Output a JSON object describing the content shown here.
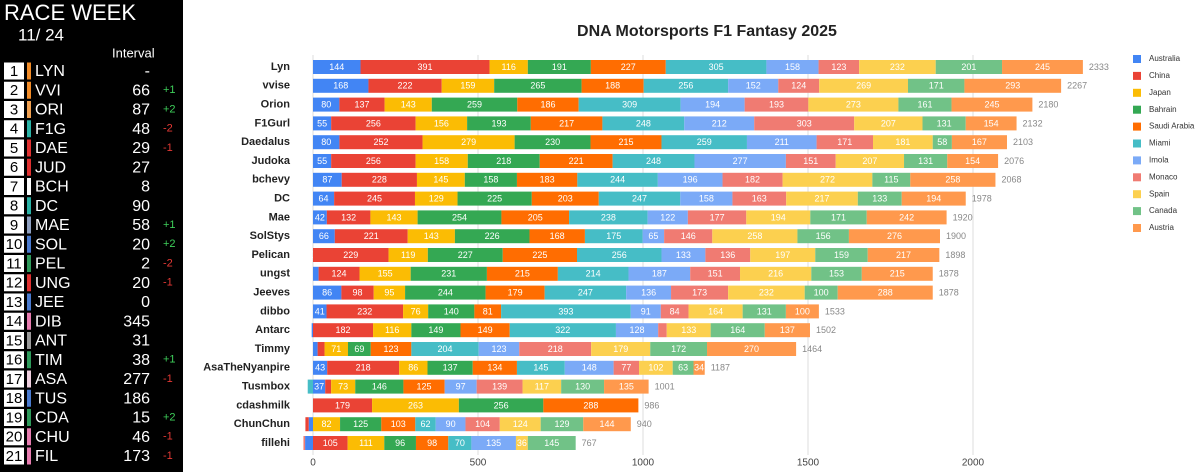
{
  "standings": {
    "title": "RACE WEEK",
    "week": "11/ 24",
    "interval_header": "Interval",
    "rows": [
      {
        "pos": 1,
        "code": "LYN",
        "interval": "-",
        "change": null,
        "color": "#f28c28"
      },
      {
        "pos": 2,
        "code": "VVI",
        "interval": 66,
        "change": "+1",
        "color": "#f28c28"
      },
      {
        "pos": 3,
        "code": "ORI",
        "interval": 87,
        "change": "+2",
        "color": "#f0a050"
      },
      {
        "pos": 4,
        "code": "F1G",
        "interval": 48,
        "change": "-2",
        "color": "#2ab3a6"
      },
      {
        "pos": 5,
        "code": "DAE",
        "interval": 29,
        "change": "-1",
        "color": "#e03030"
      },
      {
        "pos": 6,
        "code": "JUD",
        "interval": 27,
        "change": null,
        "color": "#e03030"
      },
      {
        "pos": 7,
        "code": "BCH",
        "interval": 8,
        "change": null,
        "color": "#ffffff"
      },
      {
        "pos": 8,
        "code": "DC",
        "interval": 90,
        "change": null,
        "color": "#2ab3a6"
      },
      {
        "pos": 9,
        "code": "MAE",
        "interval": 58,
        "change": "+1",
        "color": "#8fa0c0"
      },
      {
        "pos": 10,
        "code": "SOL",
        "interval": 20,
        "change": "+2",
        "color": "#4a7bd0"
      },
      {
        "pos": 11,
        "code": "PEL",
        "interval": 2,
        "change": "-2",
        "color": "#2e9a5a"
      },
      {
        "pos": 12,
        "code": "UNG",
        "interval": 20,
        "change": "-1",
        "color": "#e03030"
      },
      {
        "pos": 13,
        "code": "JEE",
        "interval": 0,
        "change": null,
        "color": "#4a7bd0"
      },
      {
        "pos": 14,
        "code": "DIB",
        "interval": 345,
        "change": null,
        "color": "#e87cb0"
      },
      {
        "pos": 15,
        "code": "ANT",
        "interval": 31,
        "change": null,
        "color": "#9a9a9a"
      },
      {
        "pos": 16,
        "code": "TIM",
        "interval": 38,
        "change": "+1",
        "color": "#2e9a5a"
      },
      {
        "pos": 17,
        "code": "ASA",
        "interval": 277,
        "change": "-1",
        "color": "#f0d0e0"
      },
      {
        "pos": 18,
        "code": "TUS",
        "interval": 186,
        "change": null,
        "color": "#4a7bd0"
      },
      {
        "pos": 19,
        "code": "CDA",
        "interval": 15,
        "change": "+2",
        "color": "#2e9a5a"
      },
      {
        "pos": 20,
        "code": "CHU",
        "interval": 46,
        "change": "-1",
        "color": "#e87cb0"
      },
      {
        "pos": 21,
        "code": "FIL",
        "interval": 173,
        "change": "-1",
        "color": "#e87cb0"
      }
    ]
  },
  "chart_data": {
    "type": "stacked_bar_horizontal",
    "title": "DNA Motorsports F1 Fantasy 2025",
    "categories": [
      "Lyn",
      "vvise",
      "Orion",
      "F1Gurl",
      "Daedalus",
      "Judoka",
      "bchevy",
      "DC",
      "Mae",
      "SolStys",
      "Pelican",
      "ungst",
      "Jeeves",
      "dibbo",
      "Antarc",
      "Timmy",
      "AsaTheNyanpire",
      "Tusmbox",
      "cdashmilk",
      "ChunChun",
      "fillehi"
    ],
    "series": [
      {
        "name": "Australia",
        "color": "#4285f4",
        "values": [
          144,
          168,
          80,
          55,
          80,
          55,
          87,
          64,
          42,
          66,
          0,
          17,
          86,
          41,
          -4,
          14,
          43,
          37,
          null,
          -13,
          -24
        ]
      },
      {
        "name": "China",
        "color": "#ea4335",
        "values": [
          391,
          222,
          137,
          256,
          252,
          256,
          228,
          245,
          132,
          221,
          229,
          124,
          98,
          232,
          182,
          21,
          218,
          18,
          179,
          -10,
          105
        ]
      },
      {
        "name": "Japan",
        "color": "#fbbc04",
        "values": [
          116,
          159,
          143,
          156,
          279,
          158,
          145,
          129,
          143,
          143,
          119,
          155,
          95,
          76,
          116,
          71,
          86,
          73,
          263,
          82,
          111
        ]
      },
      {
        "name": "Bahrain",
        "color": "#34a853",
        "values": [
          191,
          265,
          259,
          193,
          230,
          218,
          158,
          225,
          254,
          226,
          227,
          231,
          244,
          140,
          149,
          69,
          137,
          146,
          256,
          125,
          96
        ]
      },
      {
        "name": "Saudi Arabia",
        "color": "#ff6d01",
        "values": [
          227,
          188,
          186,
          217,
          215,
          221,
          183,
          203,
          205,
          168,
          225,
          215,
          179,
          81,
          149,
          123,
          134,
          125,
          288,
          103,
          98
        ]
      },
      {
        "name": "Miami",
        "color": "#46bdc6",
        "values": [
          305,
          256,
          309,
          248,
          259,
          248,
          244,
          247,
          238,
          175,
          256,
          214,
          247,
          393,
          322,
          204,
          145,
          -16,
          null,
          62,
          70
        ]
      },
      {
        "name": "Imola",
        "color": "#7baaf7",
        "values": [
          158,
          152,
          194,
          212,
          211,
          277,
          196,
          158,
          122,
          65,
          133,
          187,
          136,
          91,
          128,
          123,
          148,
          97,
          null,
          90,
          135
        ]
      },
      {
        "name": "Monaco",
        "color": "#f07b72",
        "values": [
          123,
          124,
          193,
          303,
          171,
          151,
          182,
          163,
          177,
          146,
          136,
          151,
          173,
          84,
          26,
          218,
          77,
          139,
          null,
          104,
          -5
        ]
      },
      {
        "name": "Spain",
        "color": "#fcd04f",
        "values": [
          232,
          269,
          273,
          207,
          181,
          207,
          272,
          217,
          194,
          258,
          197,
          216,
          232,
          164,
          133,
          179,
          102,
          117,
          null,
          124,
          36
        ]
      },
      {
        "name": "Canada",
        "color": "#71c287",
        "values": [
          201,
          171,
          161,
          131,
          58,
          131,
          115,
          133,
          171,
          156,
          159,
          153,
          100,
          131,
          164,
          172,
          63,
          130,
          null,
          129,
          145
        ]
      },
      {
        "name": "Austria",
        "color": "#ff994d",
        "values": [
          245,
          293,
          245,
          154,
          167,
          154,
          258,
          194,
          242,
          276,
          217,
          215,
          288,
          100,
          137,
          270,
          34,
          135,
          null,
          144,
          null
        ]
      }
    ],
    "totals": [
      2333,
      2267,
      2180,
      2132,
      2103,
      2076,
      2068,
      1978,
      1920,
      1900,
      1898,
      1878,
      1878,
      1533,
      1502,
      1464,
      1187,
      1001,
      986,
      940,
      767
    ],
    "xlim": [
      -100,
      2400
    ],
    "xticks": [
      0,
      500,
      1000,
      1500,
      2000
    ],
    "grid": true,
    "legend": "right"
  }
}
